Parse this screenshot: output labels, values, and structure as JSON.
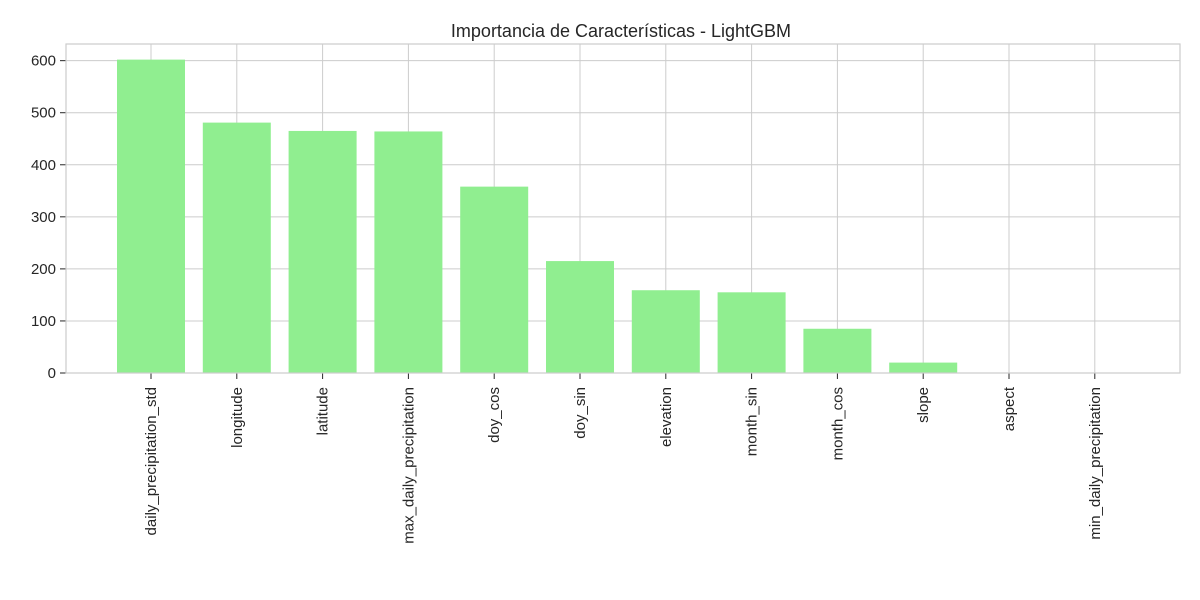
{
  "chart_data": {
    "type": "bar",
    "title": "Importancia de Características - LightGBM",
    "xlabel": "",
    "ylabel": "",
    "categories": [
      "daily_precipitation_std",
      "longitude",
      "latitude",
      "max_daily_precipitation",
      "doy_cos",
      "doy_sin",
      "elevation",
      "month_sin",
      "month_cos",
      "slope",
      "aspect",
      "min_daily_precipitation"
    ],
    "values": [
      602,
      481,
      465,
      464,
      358,
      215,
      159,
      155,
      85,
      20,
      0,
      0
    ],
    "ylim": [
      0,
      632
    ],
    "yticks": [
      0,
      100,
      200,
      300,
      400,
      500,
      600
    ],
    "grid": true,
    "bar_color": "#90ee90",
    "grid_color": "#cccccc",
    "axis_color": "#cccccc"
  }
}
